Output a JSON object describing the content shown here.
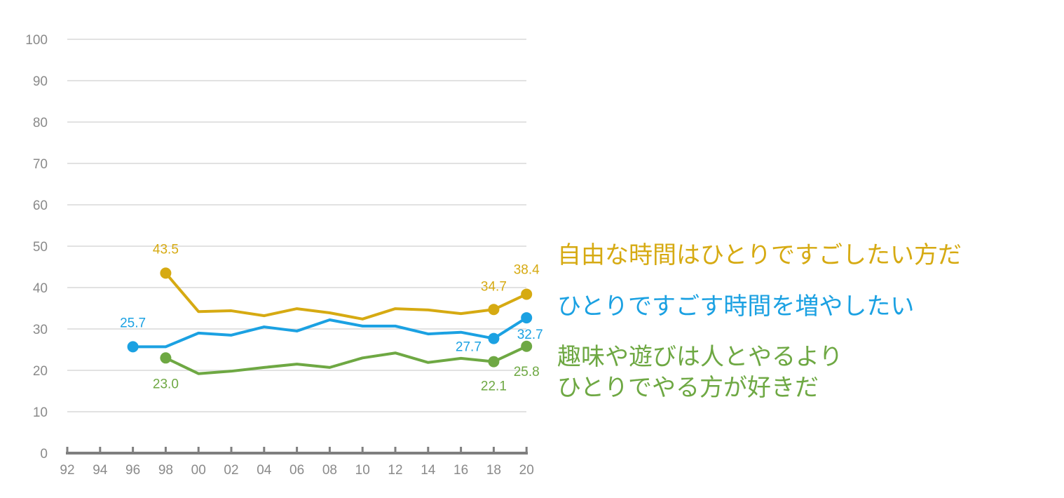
{
  "chart_data": {
    "type": "line",
    "title": "",
    "xlabel": "",
    "ylabel": "",
    "ylim": [
      0,
      100
    ],
    "yticks": [
      "0",
      "10",
      "20",
      "30",
      "40",
      "50",
      "60",
      "70",
      "80",
      "90",
      "100"
    ],
    "x": [
      "92",
      "94",
      "96",
      "98",
      "00",
      "02",
      "04",
      "06",
      "08",
      "10",
      "12",
      "14",
      "16",
      "18",
      "20"
    ],
    "grid": true,
    "legend_placement": "right",
    "series": [
      {
        "name": "自由な時間はひとりですごしたい方だ",
        "color": "#D6AA12",
        "values": [
          null,
          null,
          null,
          43.5,
          34.2,
          34.4,
          33.2,
          34.9,
          33.9,
          32.4,
          34.9,
          34.6,
          33.7,
          34.7,
          38.4
        ],
        "labeled": {
          "3": "43.5",
          "13": "34.7",
          "14": "38.4"
        }
      },
      {
        "name": "ひとりですごす時間を増やしたい",
        "color": "#1BA1E2",
        "values": [
          null,
          null,
          25.7,
          25.7,
          29.0,
          28.5,
          30.5,
          29.5,
          32.2,
          30.7,
          30.7,
          28.8,
          29.2,
          27.7,
          32.7
        ],
        "labeled": {
          "2": "25.7",
          "13": "27.7",
          "14": "32.7"
        }
      },
      {
        "name": "趣味や遊びは人とやるより ひとりでやる方が好きだ",
        "color": "#6EA843",
        "values": [
          null,
          null,
          null,
          23.0,
          19.2,
          19.8,
          20.7,
          21.5,
          20.7,
          23.0,
          24.2,
          21.9,
          22.9,
          22.1,
          25.8
        ],
        "labeled": {
          "3": "23.0",
          "13": "22.1",
          "14": "25.8"
        }
      }
    ]
  },
  "legend": {
    "line1": "自由な時間はひとりですごしたい方だ",
    "line2": "ひとりですごす時間を増やしたい",
    "line3a": "趣味や遊びは人とやるより",
    "line3b": "ひとりでやる方が好きだ"
  }
}
